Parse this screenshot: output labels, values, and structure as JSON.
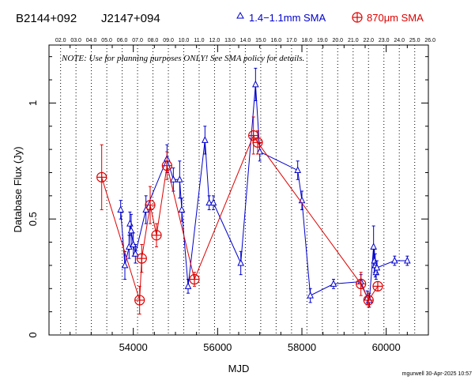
{
  "header": {
    "source1": "B2144+092",
    "source2": "J2147+094",
    "legend_blue": "1.4−1.1mm SMA",
    "legend_red": "870μm SMA"
  },
  "note": "NOTE: Use for planning purposes ONLY!  See SMA policy for details.",
  "footer": "mgurwell 30-Apr-2025 10:57",
  "colors": {
    "blue": "#0000cc",
    "red": "#dd0000",
    "axis": "#000000",
    "grid": "#000000"
  },
  "chart_data": {
    "type": "scatter",
    "xlabel": "MJD",
    "ylabel": "Database Flux (Jy)",
    "xlim": [
      52000,
      61000
    ],
    "ylim": [
      0,
      1.25
    ],
    "x_ticks": [
      54000,
      56000,
      58000,
      60000
    ],
    "y_ticks": [
      0,
      0.5,
      1
    ],
    "x_tick_labels": [
      "54000",
      "56000",
      "58000",
      "60000"
    ],
    "y_tick_labels": [
      "0",
      "0.5",
      "1"
    ],
    "year_labels": [
      "02.0",
      "03.0",
      "04.0",
      "05.0",
      "06.0",
      "07.0",
      "08.0",
      "09.0",
      "10.0",
      "11.0",
      "12.0",
      "13.0",
      "14.0",
      "15.0",
      "16.0",
      "17.0",
      "18.0",
      "19.0",
      "20.0",
      "21.0",
      "22.0",
      "23.0",
      "24.0",
      "25.0",
      "26.0"
    ],
    "year_mjd": [
      52275,
      52640,
      53005,
      53371,
      53736,
      54101,
      54466,
      54832,
      55197,
      55562,
      55927,
      56293,
      56658,
      57023,
      57388,
      57754,
      58119,
      58484,
      58849,
      59215,
      59580,
      59945,
      60310,
      60676,
      61041
    ],
    "series": [
      {
        "name": "1.4−1.1mm SMA",
        "color": "#0000cc",
        "marker": "triangle",
        "x": [
          53700,
          53800,
          53900,
          53920,
          53950,
          54000,
          54050,
          54300,
          54800,
          54950,
          55100,
          55150,
          55300,
          55700,
          55800,
          55900,
          56550,
          56900,
          57000,
          57900,
          58000,
          58200,
          58750,
          59400,
          59550,
          59600,
          59700,
          59720,
          59740,
          59760,
          59780,
          60200,
          60500
        ],
        "y": [
          0.54,
          0.3,
          0.38,
          0.48,
          0.45,
          0.39,
          0.35,
          0.54,
          0.76,
          0.67,
          0.67,
          0.54,
          0.21,
          0.84,
          0.57,
          0.57,
          0.31,
          1.08,
          0.79,
          0.71,
          0.58,
          0.17,
          0.22,
          0.23,
          0.16,
          0.15,
          0.38,
          0.32,
          0.3,
          0.27,
          0.29,
          0.32,
          0.32
        ],
        "err": [
          0.04,
          0.06,
          0.05,
          0.05,
          0.07,
          0.05,
          0.04,
          0.06,
          0.06,
          0.05,
          0.08,
          0.05,
          0.03,
          0.06,
          0.03,
          0.03,
          0.05,
          0.07,
          0.04,
          0.04,
          0.04,
          0.03,
          0.02,
          0.03,
          0.03,
          0.03,
          0.09,
          0.05,
          0.05,
          0.03,
          0.03,
          0.02,
          0.02
        ]
      },
      {
        "name": "870μm SMA",
        "color": "#dd0000",
        "marker": "circle-plus",
        "x": [
          53250,
          54150,
          54200,
          54400,
          54550,
          54800,
          55450,
          56850,
          56950,
          59400,
          59580,
          59800
        ],
        "y": [
          0.68,
          0.15,
          0.33,
          0.56,
          0.43,
          0.73,
          0.24,
          0.86,
          0.83,
          0.22,
          0.15,
          0.21
        ],
        "err": [
          0.14,
          0.06,
          0.06,
          0.08,
          0.05,
          0.06,
          0.03,
          0.08,
          0.05,
          0.05,
          0.03,
          0.02
        ]
      }
    ]
  }
}
